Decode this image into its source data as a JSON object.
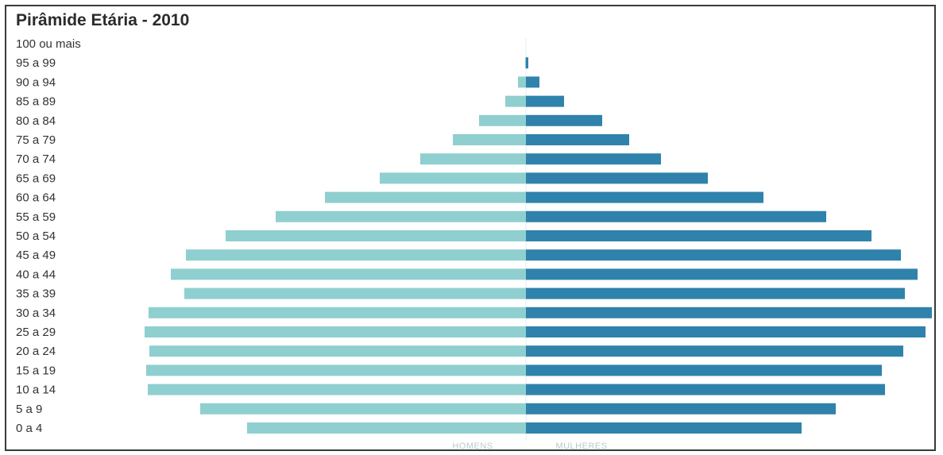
{
  "chart_data": {
    "type": "bar",
    "title": "Pirâmide Etária - 2010",
    "categories": [
      "100 ou mais",
      "95 a 99",
      "90 a 94",
      "85 a 89",
      "80 a 84",
      "75 a 79",
      "70 a 74",
      "65 a 69",
      "60 a 64",
      "55 a 59",
      "50 a 54",
      "45 a 49",
      "40 a 44",
      "35 a 39",
      "30 a 34",
      "25 a 29",
      "20 a 24",
      "15 a 19",
      "10 a 14",
      "5 a 9",
      "0 a 4"
    ],
    "series": [
      {
        "name": "HOMENS",
        "color": "#8fcfcf",
        "values": [
          0,
          1,
          10,
          26,
          59,
          92,
          133,
          184,
          253,
          315,
          378,
          428,
          447,
          430,
          475,
          480,
          474,
          478,
          476,
          410,
          351
        ]
      },
      {
        "name": "MULHERES",
        "color": "#2f82ab",
        "values": [
          0,
          3,
          17,
          48,
          96,
          130,
          170,
          229,
          299,
          378,
          435,
          472,
          493,
          477,
          511,
          503,
          475,
          448,
          452,
          390,
          347
        ]
      }
    ],
    "legend_labels": [
      "HOMENS",
      "MULHERES"
    ]
  }
}
